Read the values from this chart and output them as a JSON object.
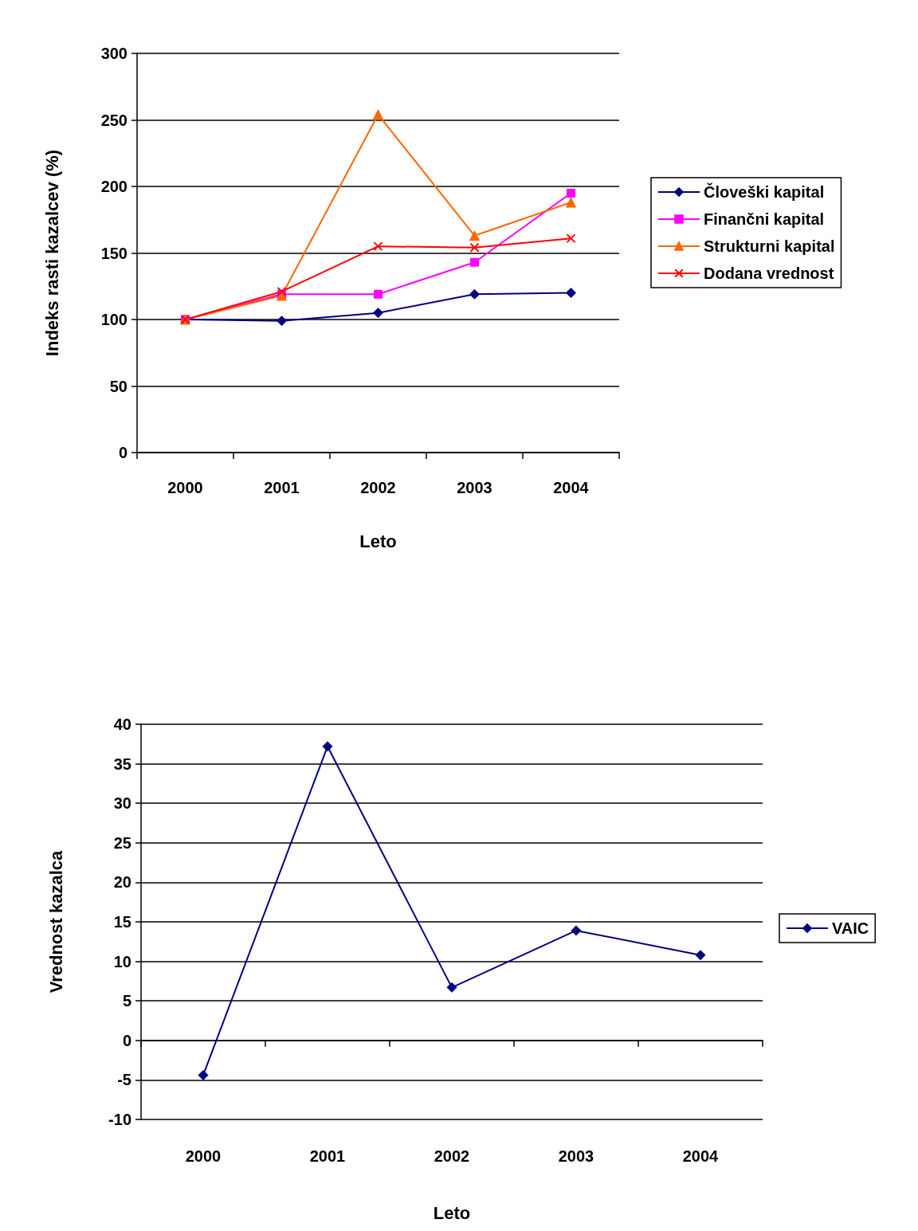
{
  "chart_data": [
    {
      "type": "line",
      "xlabel": "Leto",
      "ylabel": "Indeks rasti kazalcev (%)",
      "categories": [
        "2000",
        "2001",
        "2002",
        "2003",
        "2004"
      ],
      "series": [
        {
          "name": "Človeški kapital",
          "color": "#000080",
          "marker": "diamond",
          "values": [
            100,
            99,
            105,
            119,
            120
          ]
        },
        {
          "name": "Finančni kapital",
          "color": "#ff00ff",
          "marker": "square",
          "values": [
            100,
            119,
            119,
            143,
            195
          ]
        },
        {
          "name": "Strukturni kapital",
          "color": "#ff6600",
          "marker": "triangle",
          "values": [
            100,
            118,
            254,
            163,
            188
          ]
        },
        {
          "name": "Dodana vrednost",
          "color": "#ff0000",
          "marker": "cross",
          "values": [
            100,
            121,
            155,
            154,
            161
          ]
        }
      ],
      "ylim": [
        0,
        300
      ],
      "yticks": [
        0,
        50,
        100,
        150,
        200,
        250,
        300
      ],
      "grid": "y",
      "legend": "right"
    },
    {
      "type": "line",
      "xlabel": "Leto",
      "ylabel": "Vrednost kazalca",
      "categories": [
        "2000",
        "2001",
        "2002",
        "2003",
        "2004"
      ],
      "series": [
        {
          "name": "VAIC",
          "color": "#000080",
          "marker": "diamond",
          "values": [
            -4.4,
            37.2,
            6.7,
            13.9,
            10.8
          ]
        }
      ],
      "ylim": [
        -10,
        40
      ],
      "yticks": [
        -10,
        -5,
        0,
        5,
        10,
        15,
        20,
        25,
        30,
        35,
        40
      ],
      "grid": "y",
      "legend": "right"
    }
  ]
}
